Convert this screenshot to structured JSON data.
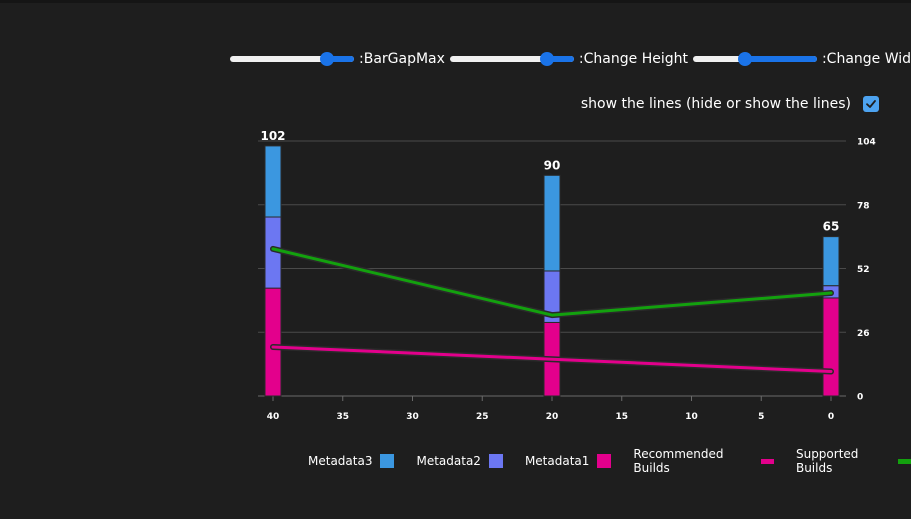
{
  "controls": {
    "sliders": [
      {
        "label": ":BarGapMax",
        "value": 0.78
      },
      {
        "label": ":Change Height",
        "value": 0.78
      },
      {
        "label": ":Change Width",
        "value": 0.42
      }
    ],
    "toggle": {
      "label": "show the lines (hide or show the lines)",
      "checked": true
    }
  },
  "colors": {
    "background": "#1e1e1e",
    "accent": "#1a73e8",
    "checkbox": "#4da3f0"
  },
  "chart_data": {
    "type": "bar",
    "x": [
      40,
      20,
      0
    ],
    "x_ticks": [
      40,
      35,
      30,
      25,
      20,
      15,
      10,
      5,
      0
    ],
    "xlim": [
      40,
      0
    ],
    "y_ticks": [
      0,
      26,
      52,
      78,
      104
    ],
    "ylim": [
      0,
      104
    ],
    "y_axis_position": "right",
    "grid": true,
    "totals": [
      102,
      90,
      65
    ],
    "stacked_series": [
      {
        "name": "Metadata1",
        "color": "#e3008c",
        "values": [
          44,
          30,
          40
        ]
      },
      {
        "name": "Metadata2",
        "color": "#6c77f2",
        "values": [
          29,
          21,
          5
        ]
      },
      {
        "name": "Metadata3",
        "color": "#3b97e0",
        "values": [
          29,
          39,
          20
        ]
      }
    ],
    "line_series": [
      {
        "name": "Recommended Builds",
        "color": "#e3008c",
        "values": [
          20,
          15,
          10
        ]
      },
      {
        "name": "Supported Builds",
        "color": "#13a10e",
        "values": [
          60,
          33,
          42
        ]
      }
    ],
    "legend": [
      {
        "name": "Metadata3",
        "color": "#3b97e0",
        "kind": "box"
      },
      {
        "name": "Metadata2",
        "color": "#6c77f2",
        "kind": "box"
      },
      {
        "name": "Metadata1",
        "color": "#e3008c",
        "kind": "box"
      },
      {
        "name": "Recommended Builds",
        "color": "#e3008c",
        "kind": "line"
      },
      {
        "name": "Supported Builds",
        "color": "#13a10e",
        "kind": "line"
      }
    ],
    "legend_position": "bottom"
  }
}
